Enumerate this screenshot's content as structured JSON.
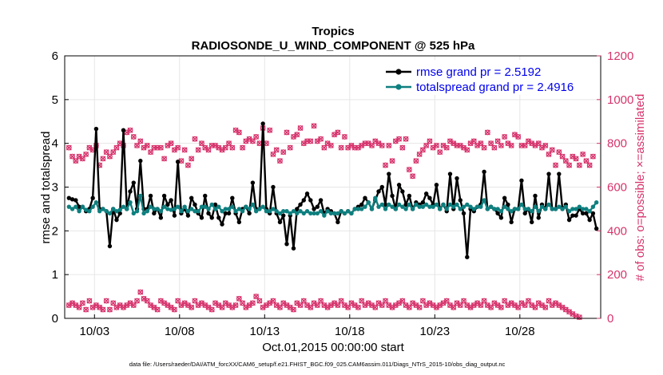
{
  "chart_data": {
    "type": "line",
    "title": "Tropics",
    "subtitle": "RADIOSONDE_U_WIND_COMPONENT @ 525 hPa",
    "ylabel_left": "rmse and totalspread",
    "ylabel_right": "# of obs: o=possible; ×=assimilated",
    "xlabel": "Oct.01,2015 00:00:00 start",
    "footnote": "data file: /Users/raeder/DAI/ATM_forcXX/CAM6_setup/f.e21.FHIST_BGC.f09_025.CAM6assim.011/Diags_NTrS_2015-10/obs_diag_output.nc",
    "x_ticks": [
      "10/03",
      "10/08",
      "10/13",
      "10/18",
      "10/23",
      "10/28"
    ],
    "x_tick_days": [
      3,
      8,
      13,
      18,
      23,
      28
    ],
    "xlim": [
      1.25,
      32.75
    ],
    "ylim_left": [
      0,
      6
    ],
    "y_ticks_left": [
      "0",
      "1",
      "2",
      "3",
      "4",
      "5",
      "6"
    ],
    "ylim_right": [
      0,
      1200
    ],
    "y_ticks_right": [
      "0",
      "200",
      "400",
      "600",
      "800",
      "1000",
      "1200"
    ],
    "legend": {
      "position": "top-right",
      "entries": [
        "rmse grand pr = 2.5192",
        "totalspread grand pr = 2.4916"
      ]
    },
    "colors": {
      "rmse": "#000000",
      "totalspread": "#0e7f7f",
      "obs": "#d6336c",
      "legend_text": "#0000ee",
      "right_axis": "#d6336c"
    },
    "series": [
      {
        "name": "rmse",
        "values": [
          2.75,
          2.72,
          2.7,
          2.55,
          2.55,
          2.45,
          2.5,
          2.75,
          4.33,
          2.5,
          2.5,
          2.45,
          1.65,
          2.5,
          2.25,
          2.4,
          4.3,
          2.5,
          2.9,
          3.1,
          2.5,
          3.6,
          2.5,
          2.5,
          2.8,
          2.4,
          2.5,
          2.3,
          2.8,
          2.6,
          2.7,
          2.35,
          3.58,
          2.4,
          2.5,
          2.35,
          2.75,
          2.6,
          2.4,
          2.3,
          2.8,
          2.4,
          2.3,
          2.6,
          2.3,
          2.15,
          2.4,
          2.4,
          2.75,
          2.4,
          2.2,
          2.5,
          2.55,
          2.4,
          3.1,
          2.5,
          2.5,
          4.45,
          2.5,
          2.4,
          3.0,
          2.4,
          2.2,
          2.35,
          1.7,
          2.35,
          1.6,
          2.5,
          2.6,
          2.7,
          2.85,
          2.7,
          2.5,
          2.55,
          2.7,
          2.4,
          2.5,
          2.45,
          2.4,
          2.2,
          2.45,
          2.4,
          2.45,
          2.4,
          2.5,
          2.55,
          2.6,
          2.75,
          2.65,
          2.5,
          2.7,
          2.9,
          3.0,
          2.6,
          3.3,
          2.8,
          2.5,
          3.05,
          2.9,
          2.6,
          2.8,
          2.5,
          2.65,
          2.6,
          2.65,
          2.85,
          2.75,
          2.6,
          3.05,
          2.5,
          2.6,
          2.45,
          3.3,
          2.5,
          3.2,
          2.7,
          2.4,
          1.4,
          2.5,
          2.45,
          2.55,
          2.6,
          3.35,
          2.5,
          2.55,
          2.5,
          2.4,
          2.3,
          2.75,
          2.6,
          2.2,
          2.5,
          2.5,
          3.15,
          2.4,
          2.5,
          2.2,
          2.8,
          2.3,
          2.6,
          2.5,
          3.3,
          2.5,
          2.5,
          3.3,
          2.5,
          2.6,
          2.25,
          2.35,
          2.35,
          2.5,
          2.4,
          2.4,
          2.25,
          2.4,
          2.05
        ]
      },
      {
        "name": "totalspread",
        "values": [
          2.55,
          2.5,
          2.55,
          2.45,
          2.55,
          2.48,
          2.45,
          2.55,
          2.65,
          2.45,
          2.5,
          2.45,
          2.4,
          2.5,
          2.45,
          2.48,
          2.55,
          2.5,
          2.65,
          2.4,
          2.45,
          2.8,
          2.4,
          2.45,
          2.55,
          2.5,
          2.5,
          2.45,
          2.55,
          2.5,
          2.48,
          2.5,
          2.55,
          2.45,
          2.55,
          2.45,
          2.5,
          2.45,
          2.45,
          2.55,
          2.55,
          2.5,
          2.6,
          2.5,
          2.55,
          2.45,
          2.5,
          2.5,
          2.55,
          2.45,
          2.5,
          2.45,
          2.55,
          2.5,
          2.6,
          2.45,
          2.5,
          2.55,
          2.45,
          2.45,
          2.5,
          2.45,
          2.4,
          2.45,
          2.45,
          2.4,
          2.45,
          2.4,
          2.45,
          2.4,
          2.45,
          2.4,
          2.4,
          2.4,
          2.45,
          2.35,
          2.45,
          2.4,
          2.4,
          2.4,
          2.45,
          2.4,
          2.45,
          2.4,
          2.5,
          2.5,
          2.5,
          2.55,
          2.65,
          2.5,
          2.75,
          2.55,
          2.6,
          2.5,
          2.6,
          2.55,
          2.5,
          2.6,
          2.55,
          2.5,
          2.6,
          2.5,
          2.6,
          2.55,
          2.55,
          2.6,
          2.55,
          2.55,
          2.6,
          2.5,
          2.6,
          2.5,
          2.6,
          2.55,
          2.6,
          2.5,
          2.55,
          2.6,
          2.55,
          2.5,
          2.55,
          2.55,
          2.7,
          2.5,
          2.55,
          2.5,
          2.5,
          2.45,
          2.55,
          2.5,
          2.45,
          2.5,
          2.5,
          2.6,
          2.5,
          2.5,
          2.45,
          2.55,
          2.45,
          2.55,
          2.5,
          2.6,
          2.5,
          2.5,
          2.55,
          2.5,
          2.55,
          2.45,
          2.5,
          2.5,
          2.55,
          2.5,
          2.5,
          2.45,
          2.55,
          2.65
        ]
      },
      {
        "name": "obs_possible_high",
        "values": [
          780,
          740,
          720,
          740,
          730,
          750,
          780,
          770,
          790,
          700,
          730,
          760,
          740,
          760,
          780,
          800,
          790,
          850,
          860,
          830,
          790,
          810,
          780,
          790,
          760,
          780,
          780,
          780,
          730,
          790,
          800,
          770,
          780,
          720,
          770,
          700,
          730,
          820,
          770,
          800,
          780,
          770,
          790,
          790,
          780,
          770,
          780,
          800,
          780,
          860,
          850,
          780,
          810,
          820,
          810,
          830,
          800,
          870,
          800,
          860,
          750,
          770,
          720,
          760,
          850,
          780,
          830,
          840,
          870,
          800,
          810,
          810,
          880,
          810,
          820,
          780,
          800,
          790,
          840,
          850,
          780,
          830,
          780,
          790,
          780,
          780,
          790,
          800,
          800,
          790,
          810,
          800,
          790,
          700,
          790,
          720,
          810,
          820,
          780,
          820,
          680,
          650,
          720,
          750,
          770,
          790,
          810,
          780,
          790,
          760,
          790,
          780,
          810,
          800,
          790,
          790,
          780,
          770,
          800,
          810,
          790,
          800,
          780,
          850,
          800,
          780,
          810,
          790,
          830,
          800,
          790,
          840,
          830,
          790,
          790,
          810,
          800,
          790,
          800,
          780,
          790,
          750,
          770,
          700,
          760,
          740,
          720,
          700,
          740,
          730,
          700,
          750,
          720,
          700,
          740
        ]
      },
      {
        "name": "obs_possible_low",
        "values": [
          60,
          70,
          60,
          50,
          70,
          40,
          80,
          50,
          60,
          50,
          40,
          80,
          40,
          70,
          50,
          60,
          50,
          60,
          70,
          60,
          80,
          120,
          90,
          80,
          60,
          50,
          40,
          80,
          70,
          60,
          50,
          40,
          80,
          60,
          70,
          60,
          50,
          80,
          60,
          70,
          60,
          50,
          40,
          70,
          60,
          50,
          70,
          60,
          50,
          60,
          90,
          70,
          50,
          60,
          70,
          100,
          80,
          50,
          60,
          70,
          80,
          60,
          50,
          70,
          60,
          50,
          40,
          70,
          60,
          80,
          60,
          50,
          70,
          60,
          80,
          60,
          50,
          60,
          70,
          60,
          80,
          60,
          50,
          70,
          60,
          50,
          80,
          60,
          70,
          60,
          50,
          70,
          60,
          80,
          60,
          50,
          60,
          70,
          80,
          60,
          50,
          70,
          60,
          50,
          80,
          60,
          70,
          60,
          50,
          60,
          70,
          80,
          60,
          50,
          70,
          60,
          80,
          60,
          50,
          60,
          70,
          60,
          80,
          60,
          50,
          70,
          60,
          50,
          80,
          60,
          70,
          60,
          50,
          70,
          60,
          80,
          60,
          50,
          70,
          60,
          50,
          80,
          60,
          70,
          60,
          50,
          40,
          30,
          20,
          10,
          5
        ]
      }
    ]
  }
}
